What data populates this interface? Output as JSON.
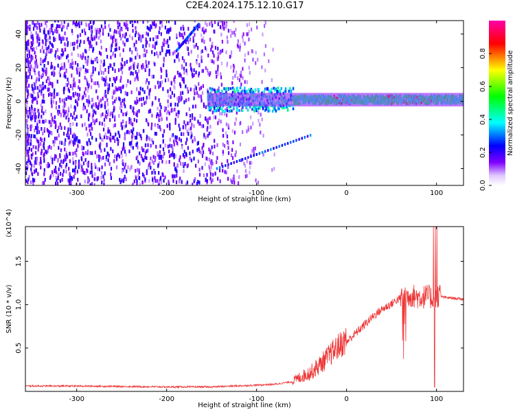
{
  "title": "C2E4.2024.175.12.10.G17",
  "chart_data": [
    {
      "type": "heatmap",
      "xlabel": "Height of straight line (km)",
      "ylabel": "Frequency (Hz)",
      "xlim": [
        -357,
        130
      ],
      "ylim": [
        -50,
        48
      ],
      "xticks": [
        -300,
        -200,
        -100,
        0,
        100
      ],
      "yticks": [
        -40,
        -20,
        0,
        20,
        40
      ],
      "colorbar": {
        "label": "Normalized spectral amplitude",
        "range": [
          0.0,
          1.0
        ],
        "ticks": [
          0.0,
          0.2,
          0.4,
          0.6,
          0.8
        ],
        "tick_labels": [
          "0.0",
          "0.2",
          "0.4",
          "0.6",
          "0.8"
        ],
        "colors": [
          "#ffffff",
          "#7f00ff",
          "#0000ff",
          "#00ffff",
          "#00ff00",
          "#ffff00",
          "#ff0000",
          "#ff00aa"
        ]
      },
      "features": {
        "noise_region_x": [
          -357,
          -80
        ],
        "main_line_freq": 1,
        "main_line_x": [
          -155,
          130
        ],
        "strong_segments_x": [
          [
            -15,
            5
          ],
          [
            45,
            95
          ]
        ],
        "lower_branch": {
          "x": [
            -145,
            -40
          ],
          "freq": [
            -40,
            -20
          ]
        },
        "upper_branch": {
          "x": [
            -190,
            -165
          ],
          "freq": [
            30,
            46
          ]
        }
      }
    },
    {
      "type": "line",
      "xlabel": "Height of straight line (km)",
      "ylabel": "SNR (10 * v/v)",
      "y_multiplier": "(x10^4)",
      "xlim": [
        -357,
        130
      ],
      "ylim": [
        0,
        1.9
      ],
      "xticks": [
        -300,
        -200,
        -100,
        0,
        100
      ],
      "yticks": [
        0.5,
        1.0,
        1.5
      ],
      "ytick_labels": [
        "0.5",
        "1.0",
        "1.5"
      ],
      "color": "#ee3333",
      "series": [
        {
          "x": [
            -357,
            -300,
            -200,
            -150,
            -100,
            -80,
            -60,
            -40,
            -30,
            -20,
            -10,
            0,
            10,
            20,
            30,
            40,
            50,
            55,
            60,
            65,
            70,
            75,
            80,
            85,
            90,
            95,
            98,
            100,
            102,
            105,
            110,
            120,
            130
          ],
          "y": [
            0.06,
            0.06,
            0.05,
            0.05,
            0.07,
            0.08,
            0.11,
            0.2,
            0.28,
            0.38,
            0.48,
            0.56,
            0.66,
            0.76,
            0.86,
            0.94,
            1.0,
            1.04,
            1.06,
            1.08,
            1.08,
            1.07,
            1.06,
            1.06,
            1.07,
            1.05,
            1.0,
            1.06,
            1.08,
            1.09,
            1.08,
            1.07,
            1.06
          ]
        }
      ]
    }
  ]
}
